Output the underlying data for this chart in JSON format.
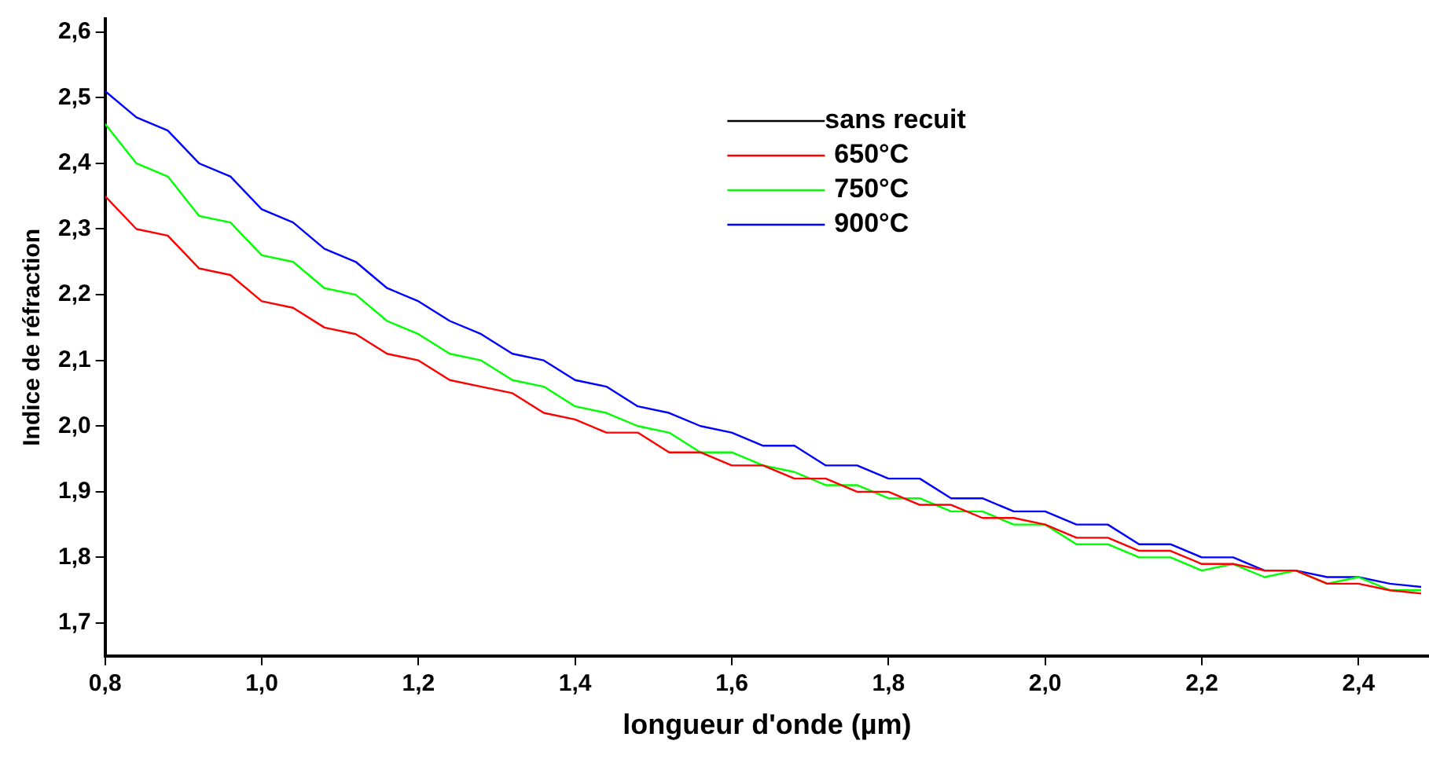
{
  "chart_data": {
    "type": "line",
    "xlabel": "longueur d'onde (µm)",
    "ylabel": "Indice de réfraction",
    "x": [
      0.8,
      0.84,
      0.88,
      0.92,
      0.96,
      1.0,
      1.04,
      1.08,
      1.12,
      1.16,
      1.2,
      1.24,
      1.28,
      1.32,
      1.36,
      1.4,
      1.44,
      1.48,
      1.52,
      1.56,
      1.6,
      1.64,
      1.68,
      1.72,
      1.76,
      1.8,
      1.84,
      1.88,
      1.92,
      1.96,
      2.0,
      2.04,
      2.08,
      2.12,
      2.16,
      2.2,
      2.24,
      2.28,
      2.32,
      2.36,
      2.4,
      2.44,
      2.48
    ],
    "series": [
      {
        "name": "sans recuit",
        "color": "#000000",
        "values": [
          null,
          null,
          null,
          null,
          null,
          null,
          null,
          null,
          null,
          null,
          null,
          null,
          null,
          null,
          null,
          null,
          null,
          null,
          null,
          null,
          null,
          null,
          null,
          null,
          null,
          null,
          null,
          null,
          null,
          null,
          null,
          null,
          null,
          null,
          null,
          null,
          null,
          null,
          null,
          null,
          null,
          null,
          null
        ]
      },
      {
        "name": "650°C",
        "color": "#ff0000",
        "values": [
          2.35,
          2.3,
          2.29,
          2.24,
          2.23,
          2.19,
          2.18,
          2.15,
          2.14,
          2.11,
          2.1,
          2.07,
          2.06,
          2.05,
          2.02,
          2.01,
          1.99,
          1.99,
          1.96,
          1.96,
          1.94,
          1.94,
          1.92,
          1.92,
          1.9,
          1.9,
          1.88,
          1.88,
          1.86,
          1.86,
          1.85,
          1.83,
          1.83,
          1.81,
          1.81,
          1.79,
          1.79,
          1.78,
          1.78,
          1.76,
          1.76,
          1.75,
          1.745
        ]
      },
      {
        "name": "750°C",
        "color": "#00ff00",
        "values": [
          2.46,
          2.4,
          2.38,
          2.32,
          2.31,
          2.26,
          2.25,
          2.21,
          2.2,
          2.16,
          2.14,
          2.11,
          2.1,
          2.07,
          2.06,
          2.03,
          2.02,
          2.0,
          1.99,
          1.96,
          1.96,
          1.94,
          1.93,
          1.91,
          1.91,
          1.89,
          1.89,
          1.87,
          1.87,
          1.85,
          1.85,
          1.82,
          1.82,
          1.8,
          1.8,
          1.78,
          1.79,
          1.77,
          1.78,
          1.76,
          1.77,
          1.75,
          1.75
        ]
      },
      {
        "name": "900°C",
        "color": "#0000ff",
        "values": [
          2.51,
          2.47,
          2.45,
          2.4,
          2.38,
          2.33,
          2.31,
          2.27,
          2.25,
          2.21,
          2.19,
          2.16,
          2.14,
          2.11,
          2.1,
          2.07,
          2.06,
          2.03,
          2.02,
          2.0,
          1.99,
          1.97,
          1.97,
          1.94,
          1.94,
          1.92,
          1.92,
          1.89,
          1.89,
          1.87,
          1.87,
          1.85,
          1.85,
          1.82,
          1.82,
          1.8,
          1.8,
          1.78,
          1.78,
          1.77,
          1.77,
          1.76,
          1.755
        ]
      }
    ],
    "xlim": [
      0.8,
      2.49
    ],
    "ylim": [
      1.65,
      2.62
    ],
    "xticks": [
      {
        "value": 0.8,
        "label": "0,8"
      },
      {
        "value": 1.0,
        "label": "1,0"
      },
      {
        "value": 1.2,
        "label": "1,2"
      },
      {
        "value": 1.4,
        "label": "1,4"
      },
      {
        "value": 1.6,
        "label": "1,6"
      },
      {
        "value": 1.8,
        "label": "1,8"
      },
      {
        "value": 2.0,
        "label": "2,0"
      },
      {
        "value": 2.2,
        "label": "2,2"
      },
      {
        "value": 2.4,
        "label": "2,4"
      }
    ],
    "yticks": [
      {
        "value": 1.7,
        "label": "1,7"
      },
      {
        "value": 1.8,
        "label": "1,8"
      },
      {
        "value": 1.9,
        "label": "1,9"
      },
      {
        "value": 2.0,
        "label": "2,0"
      },
      {
        "value": 2.1,
        "label": "2,1"
      },
      {
        "value": 2.2,
        "label": "2,2"
      },
      {
        "value": 2.3,
        "label": "2,3"
      },
      {
        "value": 2.4,
        "label": "2,4"
      },
      {
        "value": 2.5,
        "label": "2,5"
      },
      {
        "value": 2.6,
        "label": "2,6"
      }
    ],
    "grid": false,
    "legend": "top",
    "marker": "none",
    "line_style": "solid"
  }
}
